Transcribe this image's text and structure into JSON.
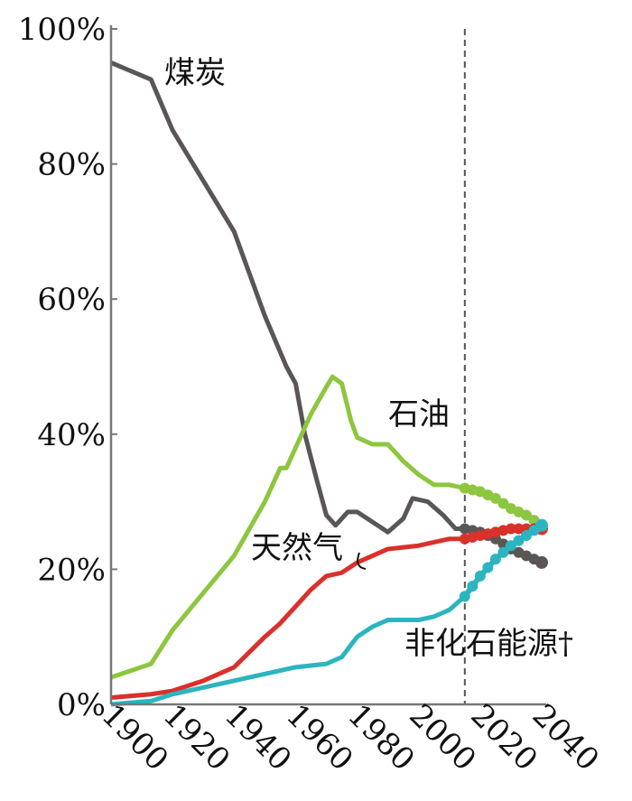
{
  "chart_data": {
    "type": "line",
    "title": "",
    "xlabel": "",
    "ylabel": "",
    "xlim": [
      1900,
      2040
    ],
    "ylim": [
      0,
      100
    ],
    "x_ticks": [
      "1900",
      "1920",
      "1940",
      "1960",
      "1980",
      "2000",
      "2020",
      "2040"
    ],
    "y_ticks": [
      "0%",
      "20%",
      "40%",
      "60%",
      "80%",
      "100%"
    ],
    "grid": false,
    "projection_start": 2015,
    "projection_marker": "dashed vertical line; projected values drawn as dots",
    "series": [
      {
        "name": "煤炭",
        "color": "#5a5656",
        "x": [
          1900,
          1913,
          1920,
          1930,
          1940,
          1950,
          1957,
          1960,
          1963,
          1967,
          1970,
          1973,
          1977,
          1980,
          1985,
          1990,
          1995,
          1998,
          2003,
          2008,
          2012,
          2015,
          2020,
          2025,
          2030,
          2035,
          2040
        ],
        "y": [
          95,
          92.5,
          85,
          77.5,
          70,
          57.5,
          50,
          47.5,
          40,
          33,
          28,
          26.5,
          28.5,
          28.5,
          27,
          25.5,
          27.5,
          30.5,
          30,
          28,
          26,
          26,
          25.5,
          24.5,
          23,
          22,
          21
        ]
      },
      {
        "name": "石油",
        "color": "#8dc63f",
        "x": [
          1900,
          1913,
          1920,
          1930,
          1940,
          1950,
          1955,
          1957,
          1960,
          1965,
          1970,
          1972,
          1975,
          1978,
          1980,
          1985,
          1990,
          1995,
          2000,
          2005,
          2010,
          2015,
          2020,
          2025,
          2030,
          2035,
          2040
        ],
        "y": [
          4,
          6,
          11,
          16.5,
          22,
          30,
          35,
          35,
          38,
          43,
          47,
          48.5,
          47.5,
          42,
          39.5,
          38.5,
          38.5,
          36,
          34,
          32.5,
          32.5,
          32,
          31.5,
          30.5,
          29,
          28,
          26.5
        ]
      },
      {
        "name": "天然气",
        "color": "#d9312b",
        "x": [
          1900,
          1913,
          1920,
          1930,
          1940,
          1950,
          1955,
          1960,
          1965,
          1970,
          1975,
          1980,
          1990,
          2000,
          2010,
          2015,
          2020,
          2025,
          2030,
          2035,
          2040
        ],
        "y": [
          1,
          1.5,
          2,
          3.5,
          5.5,
          10,
          12,
          14.5,
          17,
          19,
          19.5,
          21,
          23,
          23.5,
          24.5,
          24.5,
          25,
          25.5,
          26,
          26,
          26
        ]
      },
      {
        "name": "非化石能源†",
        "color": "#2bb5c0",
        "x": [
          1900,
          1913,
          1920,
          1940,
          1960,
          1970,
          1975,
          1980,
          1985,
          1990,
          2000,
          2005,
          2010,
          2015,
          2020,
          2025,
          2030,
          2035,
          2040
        ],
        "y": [
          0,
          0.5,
          1.5,
          3.5,
          5.5,
          6,
          7,
          10,
          11.5,
          12.5,
          12.5,
          13,
          14,
          16,
          19,
          21.5,
          23.5,
          25,
          26.5
        ]
      }
    ]
  }
}
